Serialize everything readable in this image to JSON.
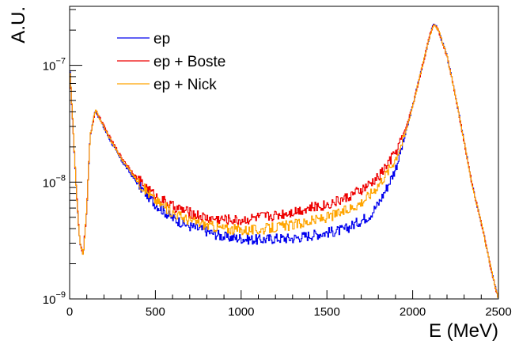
{
  "chart_data": {
    "type": "line",
    "title": "",
    "xlabel": "E (MeV)",
    "ylabel": "A.U.",
    "xlim": [
      0,
      2500
    ],
    "ylim": [
      1e-09,
      3.2e-07
    ],
    "yscale": "log",
    "grid": false,
    "legend_position": "top-left",
    "x_ticks": [
      {
        "value": 0,
        "label": "0"
      },
      {
        "value": 500,
        "label": "500"
      },
      {
        "value": 1000,
        "label": "1000"
      },
      {
        "value": 1500,
        "label": "1500"
      },
      {
        "value": 2000,
        "label": "2000"
      },
      {
        "value": 2500,
        "label": "2500"
      }
    ],
    "y_ticks": [
      {
        "value": 1e-09,
        "base": "10",
        "exp": "−9"
      },
      {
        "value": 1e-08,
        "base": "10",
        "exp": "−8"
      },
      {
        "value": 1e-07,
        "base": "10",
        "exp": "−7"
      }
    ],
    "series": [
      {
        "name": "ep",
        "color": "#0000ee",
        "x": [
          0,
          20,
          40,
          60,
          80,
          100,
          120,
          150,
          175,
          200,
          250,
          300,
          400,
          500,
          600,
          700,
          800,
          900,
          1000,
          1100,
          1200,
          1300,
          1400,
          1500,
          1600,
          1700,
          1750,
          1800,
          1850,
          1900,
          1950,
          2000,
          2050,
          2100,
          2125,
          2150,
          2200,
          2250,
          2300,
          2350,
          2400,
          2450,
          2480,
          2500
        ],
        "values": [
          1e-07,
          3e-08,
          8e-09,
          3e-09,
          2.4e-09,
          6e-09,
          2.5e-08,
          4.1e-08,
          3.5e-08,
          2.9e-08,
          2.1e-08,
          1.55e-08,
          9.5e-09,
          6.5e-09,
          4.9e-09,
          4.2e-09,
          3.8e-09,
          3.4e-09,
          3.3e-09,
          3.2e-09,
          3.3e-09,
          3.3e-09,
          3.5e-09,
          3.7e-09,
          3.9e-09,
          4.7e-09,
          5.2e-09,
          6.5e-09,
          9e-09,
          1.3e-08,
          2.3e-08,
          4.5e-08,
          9e-08,
          1.8e-07,
          2.3e-07,
          2e-07,
          1.2e-07,
          5.5e-08,
          2.2e-08,
          9e-09,
          4.5e-09,
          2e-09,
          1.3e-09,
          1e-09
        ]
      },
      {
        "name": "ep + Boste",
        "color": "#ee0000",
        "x": [
          0,
          20,
          40,
          60,
          80,
          100,
          120,
          150,
          175,
          200,
          250,
          300,
          400,
          500,
          600,
          700,
          800,
          900,
          1000,
          1100,
          1200,
          1300,
          1400,
          1500,
          1600,
          1700,
          1750,
          1800,
          1850,
          1900,
          1950,
          2000,
          2050,
          2100,
          2125,
          2150,
          2200,
          2250,
          2300,
          2350,
          2400,
          2450,
          2480,
          2500
        ],
        "values": [
          1e-07,
          3e-08,
          8e-09,
          3e-09,
          2.4e-09,
          6e-09,
          2.5e-08,
          4.1e-08,
          3.6e-08,
          3e-08,
          2.2e-08,
          1.65e-08,
          1.05e-08,
          7.6e-09,
          6.2e-09,
          5.5e-09,
          4.9e-09,
          4.8e-09,
          4.7e-09,
          5e-09,
          5.2e-09,
          5.6e-09,
          6e-09,
          6.4e-09,
          7.2e-09,
          8.5e-09,
          9.5e-09,
          1.1e-08,
          1.4e-08,
          1.8e-08,
          2.6e-08,
          4.5e-08,
          9e-08,
          1.8e-07,
          2.3e-07,
          2e-07,
          1.2e-07,
          5.5e-08,
          2.2e-08,
          9e-09,
          4.5e-09,
          2e-09,
          1.3e-09,
          1e-09
        ]
      },
      {
        "name": "ep + Nick",
        "color": "#ffa500",
        "x": [
          0,
          20,
          40,
          60,
          80,
          100,
          120,
          150,
          175,
          200,
          250,
          300,
          400,
          500,
          600,
          700,
          800,
          900,
          1000,
          1100,
          1200,
          1300,
          1400,
          1500,
          1600,
          1700,
          1750,
          1800,
          1850,
          1900,
          1950,
          2000,
          2050,
          2100,
          2125,
          2150,
          2200,
          2250,
          2300,
          2350,
          2400,
          2450,
          2480,
          2500
        ],
        "values": [
          1e-07,
          3e-08,
          8e-09,
          3e-09,
          2.4e-09,
          6e-09,
          2.5e-08,
          4.1e-08,
          3.55e-08,
          2.95e-08,
          2.15e-08,
          1.6e-08,
          1e-08,
          7e-09,
          5.5e-09,
          4.7e-09,
          4.3e-09,
          4e-09,
          3.9e-09,
          3.9e-09,
          4.1e-09,
          4.3e-09,
          4.6e-09,
          5e-09,
          5.6e-09,
          6.7e-09,
          7.8e-09,
          9.5e-09,
          1.2e-08,
          1.6e-08,
          2.4e-08,
          4.5e-08,
          9e-08,
          1.8e-07,
          2.3e-07,
          2e-07,
          1.2e-07,
          5.5e-08,
          2.2e-08,
          9e-09,
          4.5e-09,
          2e-09,
          1.3e-09,
          1e-09
        ]
      }
    ]
  }
}
